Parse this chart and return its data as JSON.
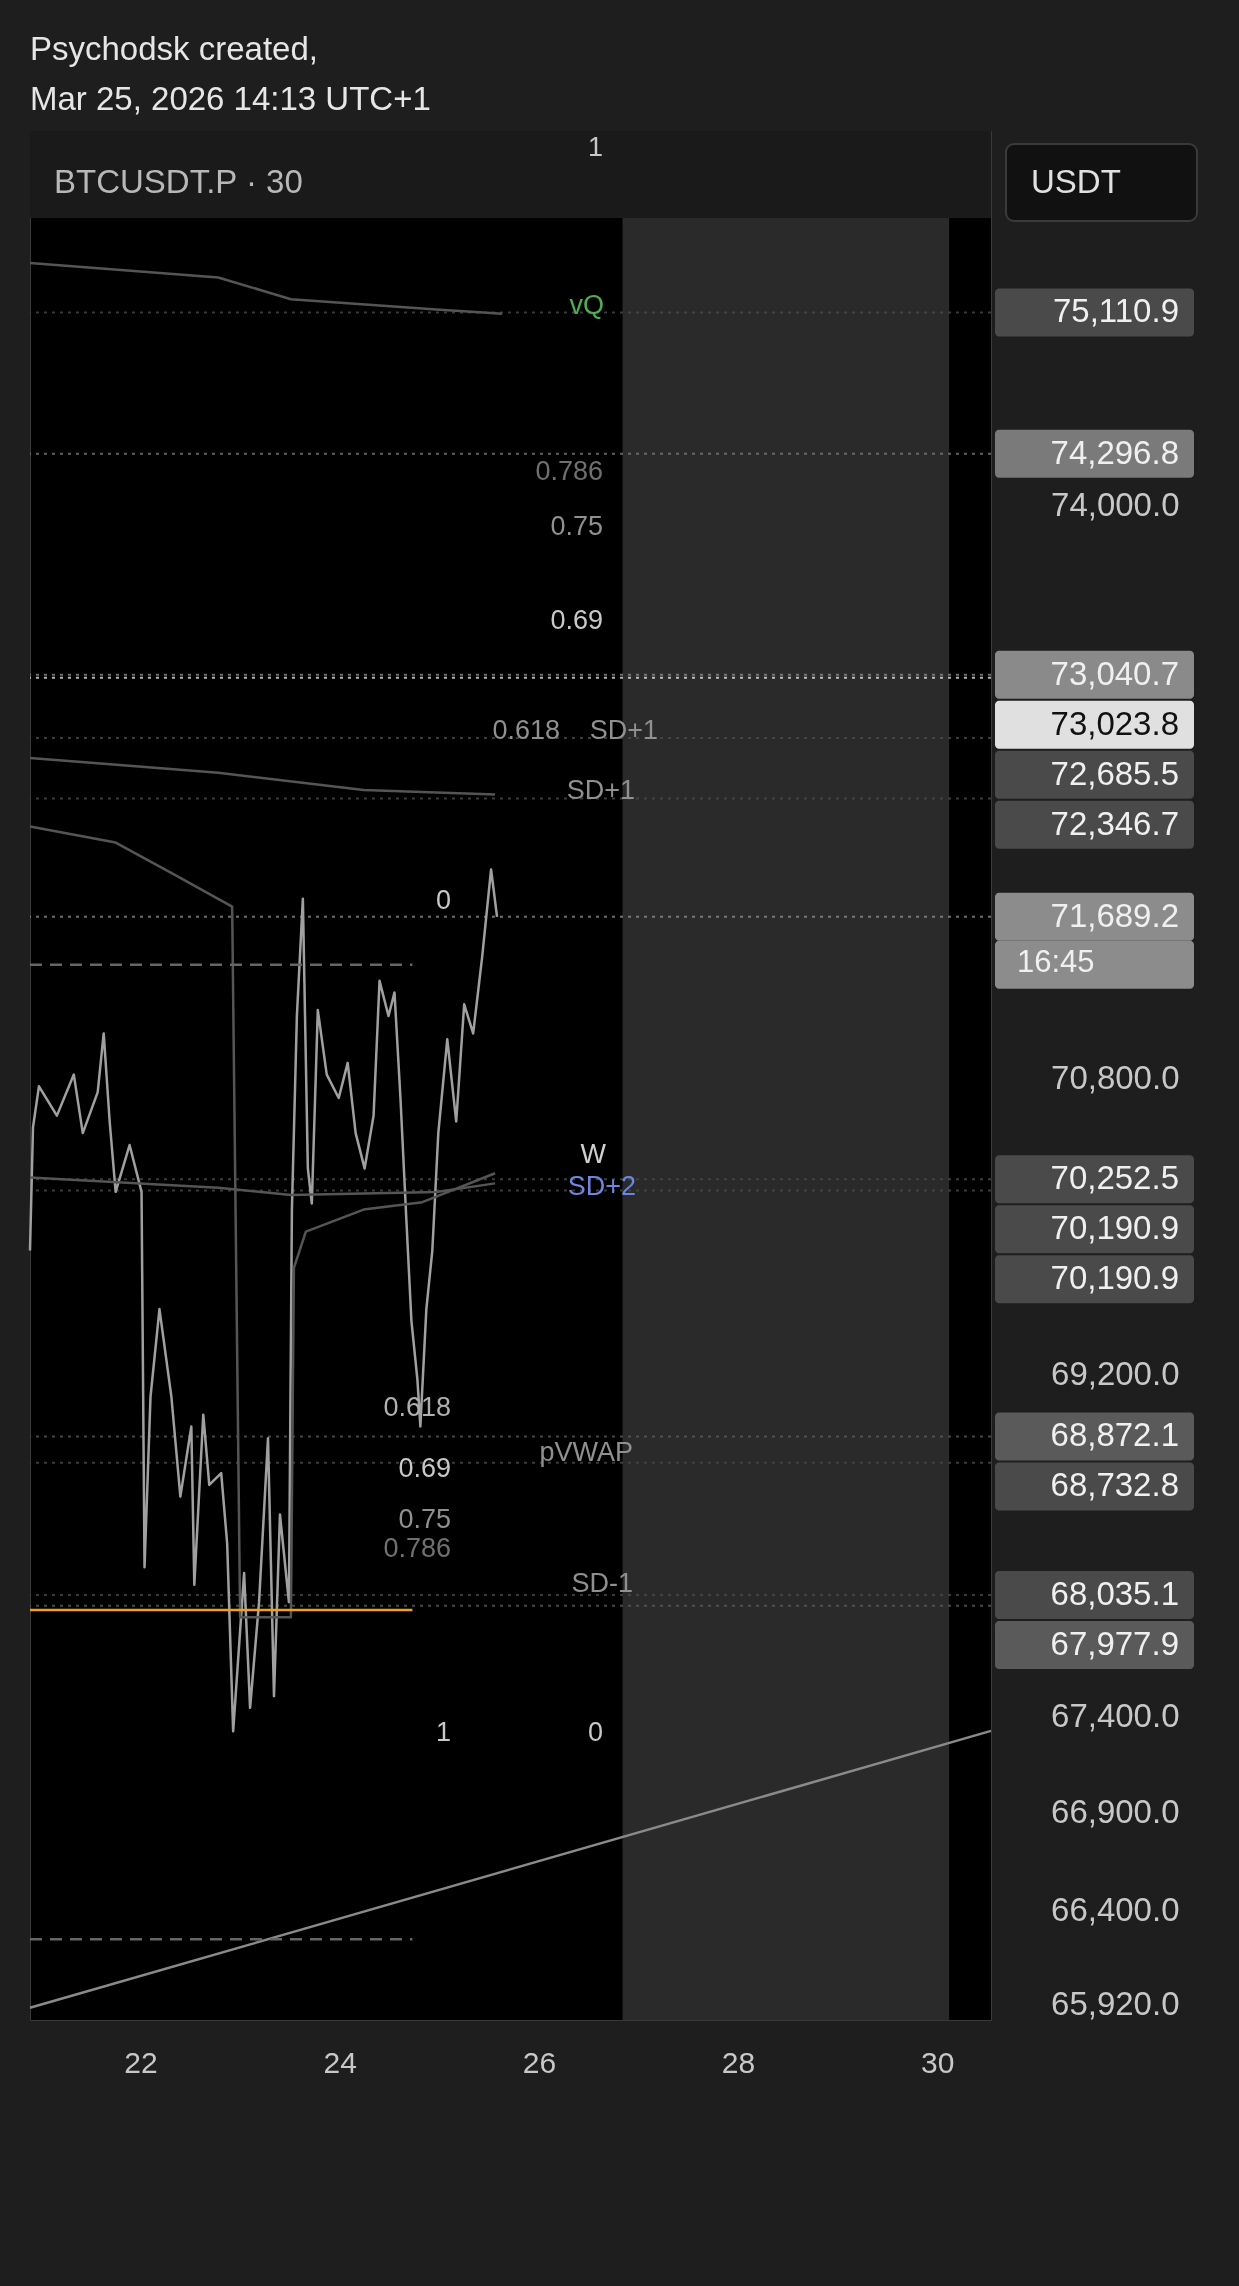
{
  "chart_data": {
    "type": "line",
    "title": "BTCUSDT.P · 30",
    "log": "y",
    "xlim": [
      20.89,
      30.54
    ],
    "xticks": [
      22,
      24,
      26,
      28,
      30
    ],
    "ylim": [
      65840,
      76170
    ],
    "yticks": [
      {
        "value": 65920,
        "label": "65,920.0"
      },
      {
        "value": 66400,
        "label": "66,400.0"
      },
      {
        "value": 66900,
        "label": "66,900.0"
      },
      {
        "value": 67400,
        "label": "67,400.0"
      },
      {
        "value": 69200,
        "label": "69,200.0"
      },
      {
        "value": 70800,
        "label": "70,800.0"
      },
      {
        "value": 74000,
        "label": "74,000.0"
      }
    ],
    "series": [
      {
        "color": "#a0a0a0",
        "x": [
          20.89,
          20.92,
          20.98,
          21.16,
          21.33,
          21.42,
          21.57,
          21.63,
          21.69,
          21.75,
          21.89,
          22.01,
          22.04,
          22.1,
          22.19,
          22.31,
          22.4,
          22.51,
          22.54,
          22.63,
          22.69,
          22.81,
          22.87,
          22.93,
          23.04,
          23.1,
          23.19,
          23.28,
          23.34,
          23.4,
          23.49,
          23.52,
          23.57,
          23.63,
          23.68,
          23.72,
          23.78,
          23.87,
          23.99,
          24.08,
          24.16,
          24.25,
          24.34,
          24.4,
          24.49,
          24.55,
          24.61,
          24.67,
          24.72,
          24.78,
          24.81,
          24.87,
          24.93,
          24.99,
          25.08,
          25.17,
          25.25,
          25.34,
          25.43,
          25.52,
          25.58
        ],
        "values": [
          69867,
          70534,
          70758,
          70598,
          70822,
          70503,
          70726,
          71047,
          70566,
          70184,
          70438,
          70184,
          68181,
          69082,
          69552,
          69082,
          68553,
          68925,
          68089,
          68988,
          68615,
          68677,
          68305,
          67323,
          68150,
          67445,
          67997,
          68863,
          67506,
          68459,
          67997,
          70089,
          71143,
          71789,
          70311,
          70121,
          71175,
          70822,
          70694,
          70886,
          70503,
          70311,
          70598,
          71336,
          71143,
          71272,
          70694,
          70025,
          69489,
          69176,
          68925,
          69552,
          69867,
          70503,
          71015,
          70566,
          71207,
          71047,
          71465,
          71952,
          71689.2
        ]
      },
      {
        "color": "#555555",
        "x": [
          20.89,
          22.78,
          23.51,
          24.97,
          25.63
        ],
        "values": [
          75398,
          75314,
          75188,
          75128,
          75103
        ]
      },
      {
        "color": "#555555",
        "x": [
          20.89,
          22.78,
          24.24,
          25.56
        ],
        "values": [
          72573,
          72491,
          72394,
          72369
        ]
      },
      {
        "color": "#555555",
        "x": [
          20.89,
          22.78,
          23.51,
          24.97,
          25.56
        ],
        "values": [
          70262,
          70206,
          70167,
          70183,
          70230
        ]
      },
      {
        "color": "#555555",
        "x": [
          20.89,
          21.75,
          22.34,
          22.92,
          23.0,
          23.51,
          23.54,
          23.66,
          24.24,
          24.83,
          25.56
        ],
        "values": [
          72190,
          72101,
          71923,
          71746,
          67918,
          67918,
          69774,
          69969,
          70088,
          70128,
          70285
        ]
      },
      {
        "color": "#8a8a8a",
        "x": [
          20.89,
          30.54
        ],
        "values": [
          65902,
          67325
        ]
      },
      {
        "color": "#f0a020",
        "x": [
          20.89,
          24.73
        ],
        "values": [
          67956,
          67956
        ]
      },
      {
        "color": "#666666",
        "line_style": "dashed",
        "x": [
          20.89,
          24.73
        ],
        "values": [
          71424,
          71424
        ]
      },
      {
        "color": "#666666",
        "line_style": "dashed",
        "x": [
          20.89,
          24.73
        ],
        "values": [
          66251,
          66251
        ]
      }
    ],
    "bands": [
      {
        "axis": "x",
        "from": 26.84,
        "to": 30.12,
        "color": "#2a2a2a"
      }
    ],
    "ref_lines": [
      {
        "axis": "y",
        "value": 75110.9,
        "label": "75,110.9",
        "color": "#4a4a4a",
        "line_style": "dotted"
      },
      {
        "axis": "y",
        "value": 74296.8,
        "label": "74,296.8",
        "color": "#7a7a7a",
        "line_style": "dotted"
      },
      {
        "axis": "y",
        "value": 73040.7,
        "label": "73,040.7",
        "color": "#8a8a8a",
        "line_style": "dotted"
      },
      {
        "axis": "y",
        "value": 73023.8,
        "label": "73,023.8",
        "color": "#e0e0e0",
        "line_style": "dotted"
      },
      {
        "axis": "y",
        "value": 72685.5,
        "label": "72,685.5",
        "color": "#4a4a4a",
        "line_style": "dotted"
      },
      {
        "axis": "y",
        "value": 72346.7,
        "label": "72,346.7",
        "color": "#4a4a4a",
        "line_style": "dotted"
      },
      {
        "axis": "y",
        "value": 71689.2,
        "label": "71,689.2",
        "color": "#8c8c8c",
        "line_style": "dotted"
      },
      {
        "axis": "y",
        "value": 70252.5,
        "label": "70,252.5",
        "color": "#4a4a4a",
        "line_style": "dotted"
      },
      {
        "axis": "y",
        "value": 70190.9,
        "label": "70,190.9",
        "color": "#4a4a4a",
        "line_style": "dotted"
      },
      {
        "axis": "y",
        "value": 68872.1,
        "label": "68,872.1",
        "color": "#5a5a5a",
        "line_style": "dotted"
      },
      {
        "axis": "y",
        "value": 68732.8,
        "label": "68,732.8",
        "color": "#4a4a4a",
        "line_style": "dotted"
      },
      {
        "axis": "y",
        "value": 68035.1,
        "label": "68,035.1",
        "color": "#4a4a4a",
        "line_style": "dotted"
      },
      {
        "axis": "y",
        "value": 67977.9,
        "label": "67,977.9",
        "color": "#5a5a5a",
        "line_style": "dotted"
      }
    ],
    "annotations": [
      "Psychodsk created,",
      "Mar 25, 2026 14:13 UTC+1",
      "USDT",
      "16:45",
      "70,190.9",
      "0",
      "0.618",
      "0.69",
      "0.75",
      "0.786",
      "1",
      "1",
      "0.786",
      "0.75",
      "0.69",
      "0.618",
      "0",
      "vQ",
      "SD+1",
      "SD+1",
      "W",
      "SD+2",
      "pVWAP",
      "SD-1"
    ]
  }
}
